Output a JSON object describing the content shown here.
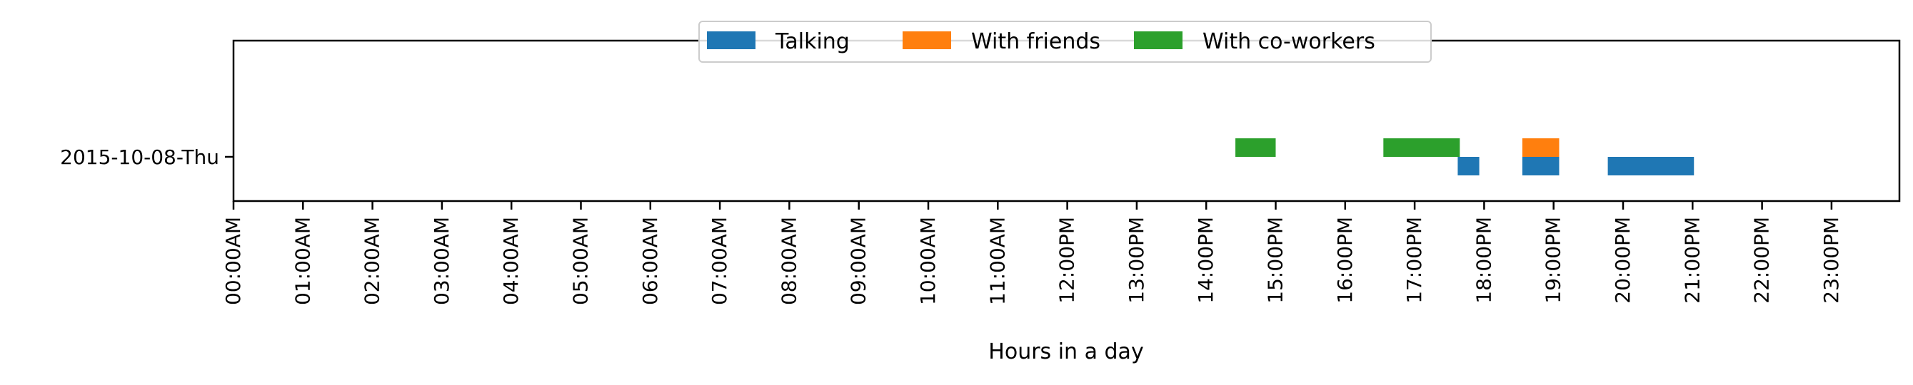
{
  "chart_data": {
    "type": "bar",
    "orientation": "horizontal-timeline",
    "title": "",
    "xlabel": "Hours in a day",
    "ylabel": "",
    "xlim": [
      0,
      24
    ],
    "grid": false,
    "legend_position": "top-center",
    "categories": [
      "2015-10-08-Thu"
    ],
    "x_ticks": [
      "00:00AM",
      "01:00AM",
      "02:00AM",
      "03:00AM",
      "04:00AM",
      "05:00AM",
      "06:00AM",
      "07:00AM",
      "08:00AM",
      "09:00AM",
      "10:00AM",
      "11:00AM",
      "12:00PM",
      "13:00PM",
      "14:00PM",
      "15:00PM",
      "16:00PM",
      "17:00PM",
      "18:00PM",
      "19:00PM",
      "20:00PM",
      "21:00PM",
      "22:00PM",
      "23:00PM"
    ],
    "series": [
      {
        "name": "Talking",
        "color": "#1f77b4",
        "lane": "lower",
        "intervals": [
          {
            "category": "2015-10-08-Thu",
            "start": 17.62,
            "end": 17.93
          },
          {
            "category": "2015-10-08-Thu",
            "start": 18.55,
            "end": 19.08
          },
          {
            "category": "2015-10-08-Thu",
            "start": 19.78,
            "end": 21.02
          }
        ]
      },
      {
        "name": "With friends",
        "color": "#ff7f0e",
        "lane": "upper",
        "intervals": [
          {
            "category": "2015-10-08-Thu",
            "start": 18.55,
            "end": 19.08
          }
        ]
      },
      {
        "name": "With co-workers",
        "color": "#2ca02c",
        "lane": "upper",
        "intervals": [
          {
            "category": "2015-10-08-Thu",
            "start": 14.42,
            "end": 15.0
          },
          {
            "category": "2015-10-08-Thu",
            "start": 16.55,
            "end": 17.65
          }
        ]
      }
    ]
  }
}
